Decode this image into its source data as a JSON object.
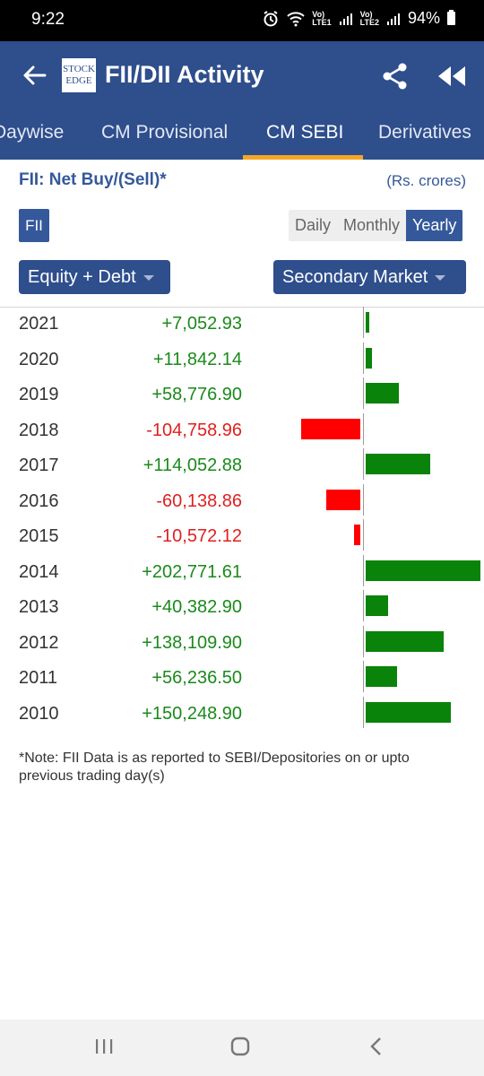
{
  "status_bar": {
    "time": "9:22",
    "signal_1": "Vo)\nLTE1",
    "signal_2": "Vo)\nLTE2",
    "battery": "94%"
  },
  "header": {
    "logo_line1": "STOCK",
    "logo_line2": "EDGE",
    "title": "FII/DII Activity",
    "color": "#2e4e8c"
  },
  "tabs": [
    {
      "label": "Daywise",
      "active": false
    },
    {
      "label": "CM Provisional",
      "active": false
    },
    {
      "label": "CM SEBI",
      "active": true
    },
    {
      "label": "Derivatives",
      "active": false
    }
  ],
  "section": {
    "title": "FII: Net Buy/(Sell)*",
    "units": "(Rs. crores)",
    "investor_chip": "FII"
  },
  "period_toggle": {
    "options": [
      "Daily",
      "Monthly",
      "Yearly"
    ],
    "selected": "Yearly"
  },
  "filters": {
    "segment": "Equity + Debt",
    "market": "Secondary Market"
  },
  "rows": [
    {
      "year": "2021",
      "value": "+7,052.93",
      "amount": 7052.93
    },
    {
      "year": "2020",
      "value": "+11,842.14",
      "amount": 11842.14
    },
    {
      "year": "2019",
      "value": "+58,776.90",
      "amount": 58776.9
    },
    {
      "year": "2018",
      "value": "-104,758.96",
      "amount": -104758.96
    },
    {
      "year": "2017",
      "value": "+114,052.88",
      "amount": 114052.88
    },
    {
      "year": "2016",
      "value": "-60,138.86",
      "amount": -60138.86
    },
    {
      "year": "2015",
      "value": "-10,572.12",
      "amount": -10572.12
    },
    {
      "year": "2014",
      "value": "+202,771.61",
      "amount": 202771.61
    },
    {
      "year": "2013",
      "value": "+40,382.90",
      "amount": 40382.9
    },
    {
      "year": "2012",
      "value": "+138,109.90",
      "amount": 138109.9
    },
    {
      "year": "2011",
      "value": "+56,236.50",
      "amount": 56236.5
    },
    {
      "year": "2010",
      "value": "+150,248.90",
      "amount": 150248.9
    }
  ],
  "colors": {
    "positive_text": "#1a8a1a",
    "negative_text": "#e02020",
    "positive_bar": "#0a830a",
    "negative_bar": "#ff0000",
    "tab_indicator": "#f5a623"
  },
  "note": "*Note: FII Data is as reported to SEBI/Depositories on or upto previous trading day(s)"
}
